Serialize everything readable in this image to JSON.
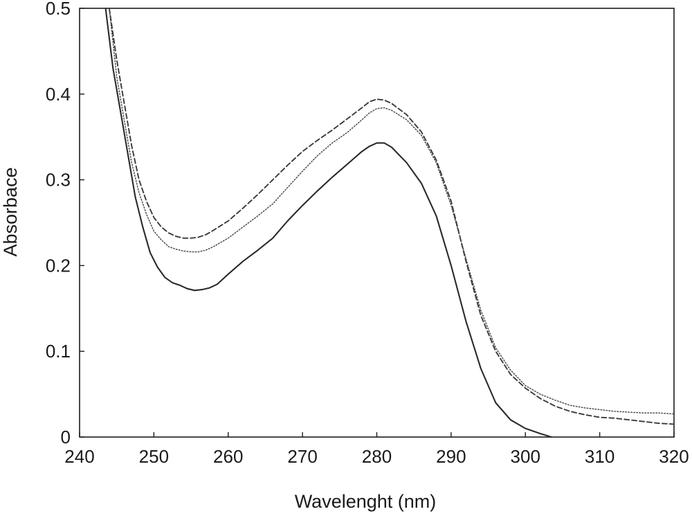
{
  "chart_data": {
    "type": "line",
    "title": "",
    "xlabel": "Wavelenght (nm)",
    "ylabel": "Absorbace",
    "xlim": [
      240,
      320
    ],
    "ylim": [
      0,
      0.5
    ],
    "x_ticks": [
      "240",
      "250",
      "260",
      "270",
      "280",
      "290",
      "300",
      "310",
      "320"
    ],
    "y_ticks": [
      "0",
      "0.1",
      "0.2",
      "0.3",
      "0.4",
      "0.5"
    ],
    "grid": false,
    "legend": false,
    "series": [
      {
        "style": "solid",
        "color": "#2a2a2a",
        "x": [
          243.5,
          244.5,
          245.5,
          246.5,
          247.5,
          248.5,
          249.5,
          250.5,
          251.5,
          252.5,
          253.5,
          254.5,
          255.5,
          256.5,
          257.5,
          258.5,
          260,
          262,
          264,
          266,
          268,
          270,
          272,
          274,
          276,
          278,
          279,
          280,
          281,
          282,
          284,
          286,
          288,
          290,
          292,
          294,
          296,
          298,
          300,
          302,
          303.5
        ],
        "y": [
          0.5,
          0.43,
          0.38,
          0.33,
          0.28,
          0.245,
          0.215,
          0.198,
          0.186,
          0.18,
          0.177,
          0.173,
          0.171,
          0.172,
          0.174,
          0.178,
          0.19,
          0.205,
          0.218,
          0.232,
          0.252,
          0.27,
          0.287,
          0.303,
          0.318,
          0.333,
          0.339,
          0.343,
          0.343,
          0.338,
          0.32,
          0.296,
          0.258,
          0.2,
          0.135,
          0.08,
          0.04,
          0.02,
          0.01,
          0.004,
          0.0
        ]
      },
      {
        "style": "dotted",
        "color": "#4a4a4a",
        "x": [
          244,
          245,
          246,
          247,
          248,
          249,
          250,
          251,
          252,
          253,
          254,
          255,
          256,
          257,
          258,
          260,
          262,
          264,
          266,
          268,
          270,
          272,
          274,
          276,
          278,
          279,
          280,
          281,
          282,
          284,
          286,
          288,
          290,
          292,
          294,
          296,
          298,
          300,
          302,
          304,
          306,
          308,
          310,
          312,
          314,
          316,
          318,
          320
        ],
        "y": [
          0.5,
          0.42,
          0.37,
          0.32,
          0.285,
          0.26,
          0.24,
          0.23,
          0.222,
          0.219,
          0.217,
          0.216,
          0.216,
          0.218,
          0.222,
          0.232,
          0.245,
          0.258,
          0.272,
          0.291,
          0.31,
          0.328,
          0.343,
          0.355,
          0.37,
          0.378,
          0.383,
          0.384,
          0.381,
          0.37,
          0.352,
          0.32,
          0.27,
          0.208,
          0.148,
          0.104,
          0.078,
          0.06,
          0.05,
          0.043,
          0.037,
          0.034,
          0.032,
          0.03,
          0.029,
          0.028,
          0.028,
          0.027
        ]
      },
      {
        "style": "dashed",
        "color": "#3a3a3a",
        "x": [
          244,
          245,
          246,
          247,
          248,
          249,
          250,
          251,
          252,
          253,
          254,
          255,
          256,
          257,
          258,
          260,
          262,
          264,
          266,
          268,
          270,
          272,
          274,
          276,
          278,
          279,
          280,
          281,
          282,
          284,
          286,
          288,
          290,
          292,
          294,
          296,
          298,
          300,
          302,
          304,
          306,
          308,
          310,
          312,
          314,
          316,
          318,
          320
        ],
        "y": [
          0.5,
          0.44,
          0.39,
          0.34,
          0.3,
          0.275,
          0.256,
          0.245,
          0.238,
          0.234,
          0.232,
          0.232,
          0.233,
          0.236,
          0.241,
          0.252,
          0.267,
          0.283,
          0.3,
          0.317,
          0.333,
          0.346,
          0.358,
          0.371,
          0.384,
          0.391,
          0.394,
          0.393,
          0.389,
          0.376,
          0.356,
          0.323,
          0.275,
          0.205,
          0.142,
          0.1,
          0.073,
          0.057,
          0.045,
          0.036,
          0.03,
          0.026,
          0.023,
          0.022,
          0.02,
          0.018,
          0.016,
          0.015
        ]
      }
    ]
  }
}
